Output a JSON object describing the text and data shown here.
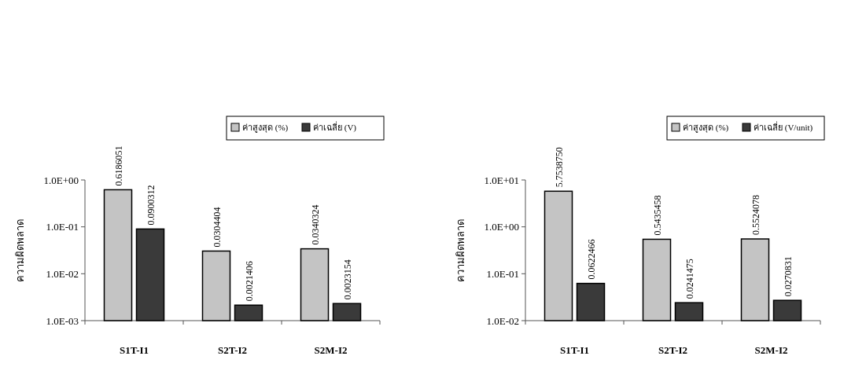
{
  "chart_data": [
    {
      "type": "bar",
      "ylabel": "ความผิดพลาด",
      "categories": [
        "S1T-I1",
        "S2T-I2",
        "S2M-I2"
      ],
      "log": "y",
      "legend": "top right",
      "data_labels": true,
      "ylim": [
        0.001,
        1
      ],
      "yticks": [
        {
          "value": 0.001,
          "label": "1.0E-03"
        },
        {
          "value": 0.01,
          "label": "1.0E-02"
        },
        {
          "value": 0.1,
          "label": "1.0E-01"
        },
        {
          "value": 1,
          "label": "1.0E+00"
        }
      ],
      "series": [
        {
          "name": "ค่าสูงสุด (%)",
          "color": "#c4c4c4",
          "values": [
            0.6186051,
            0.0304404,
            0.0340324
          ]
        },
        {
          "name": "ค่าเฉลี่ย (V)",
          "color": "#3a3a3a",
          "values": [
            0.0900312,
            0.0021406,
            0.0023154
          ]
        }
      ]
    },
    {
      "type": "bar",
      "ylabel": "ความผิดพลาด",
      "categories": [
        "S1T-I1",
        "S2T-I2",
        "S2M-I2"
      ],
      "log": "y",
      "legend": "top right",
      "ylim": [
        0.01,
        10
      ],
      "yticks": [
        {
          "value": 0.01,
          "label": "1.0E-02"
        },
        {
          "value": 0.1,
          "label": "1.0E-01"
        },
        {
          "value": 1,
          "label": "1.0E+00"
        },
        {
          "value": 10,
          "label": "1.0E+01"
        }
      ],
      "series": [
        {
          "name": "ค่าสูงสุด (%)",
          "color": "#c4c4c4",
          "values": [
            5.753875,
            0.5435458,
            0.5524078
          ],
          "value_labels": [
            "5.7538750",
            "0.5435458",
            "0.5524078"
          ]
        },
        {
          "name": "ค่าเฉลี่ย (V/unit)",
          "color": "#3a3a3a",
          "values": [
            0.0622466,
            0.0241475,
            0.0270831
          ],
          "value_labels": [
            "0.0622466",
            "0.0241475",
            "0.0270831"
          ]
        }
      ]
    }
  ]
}
